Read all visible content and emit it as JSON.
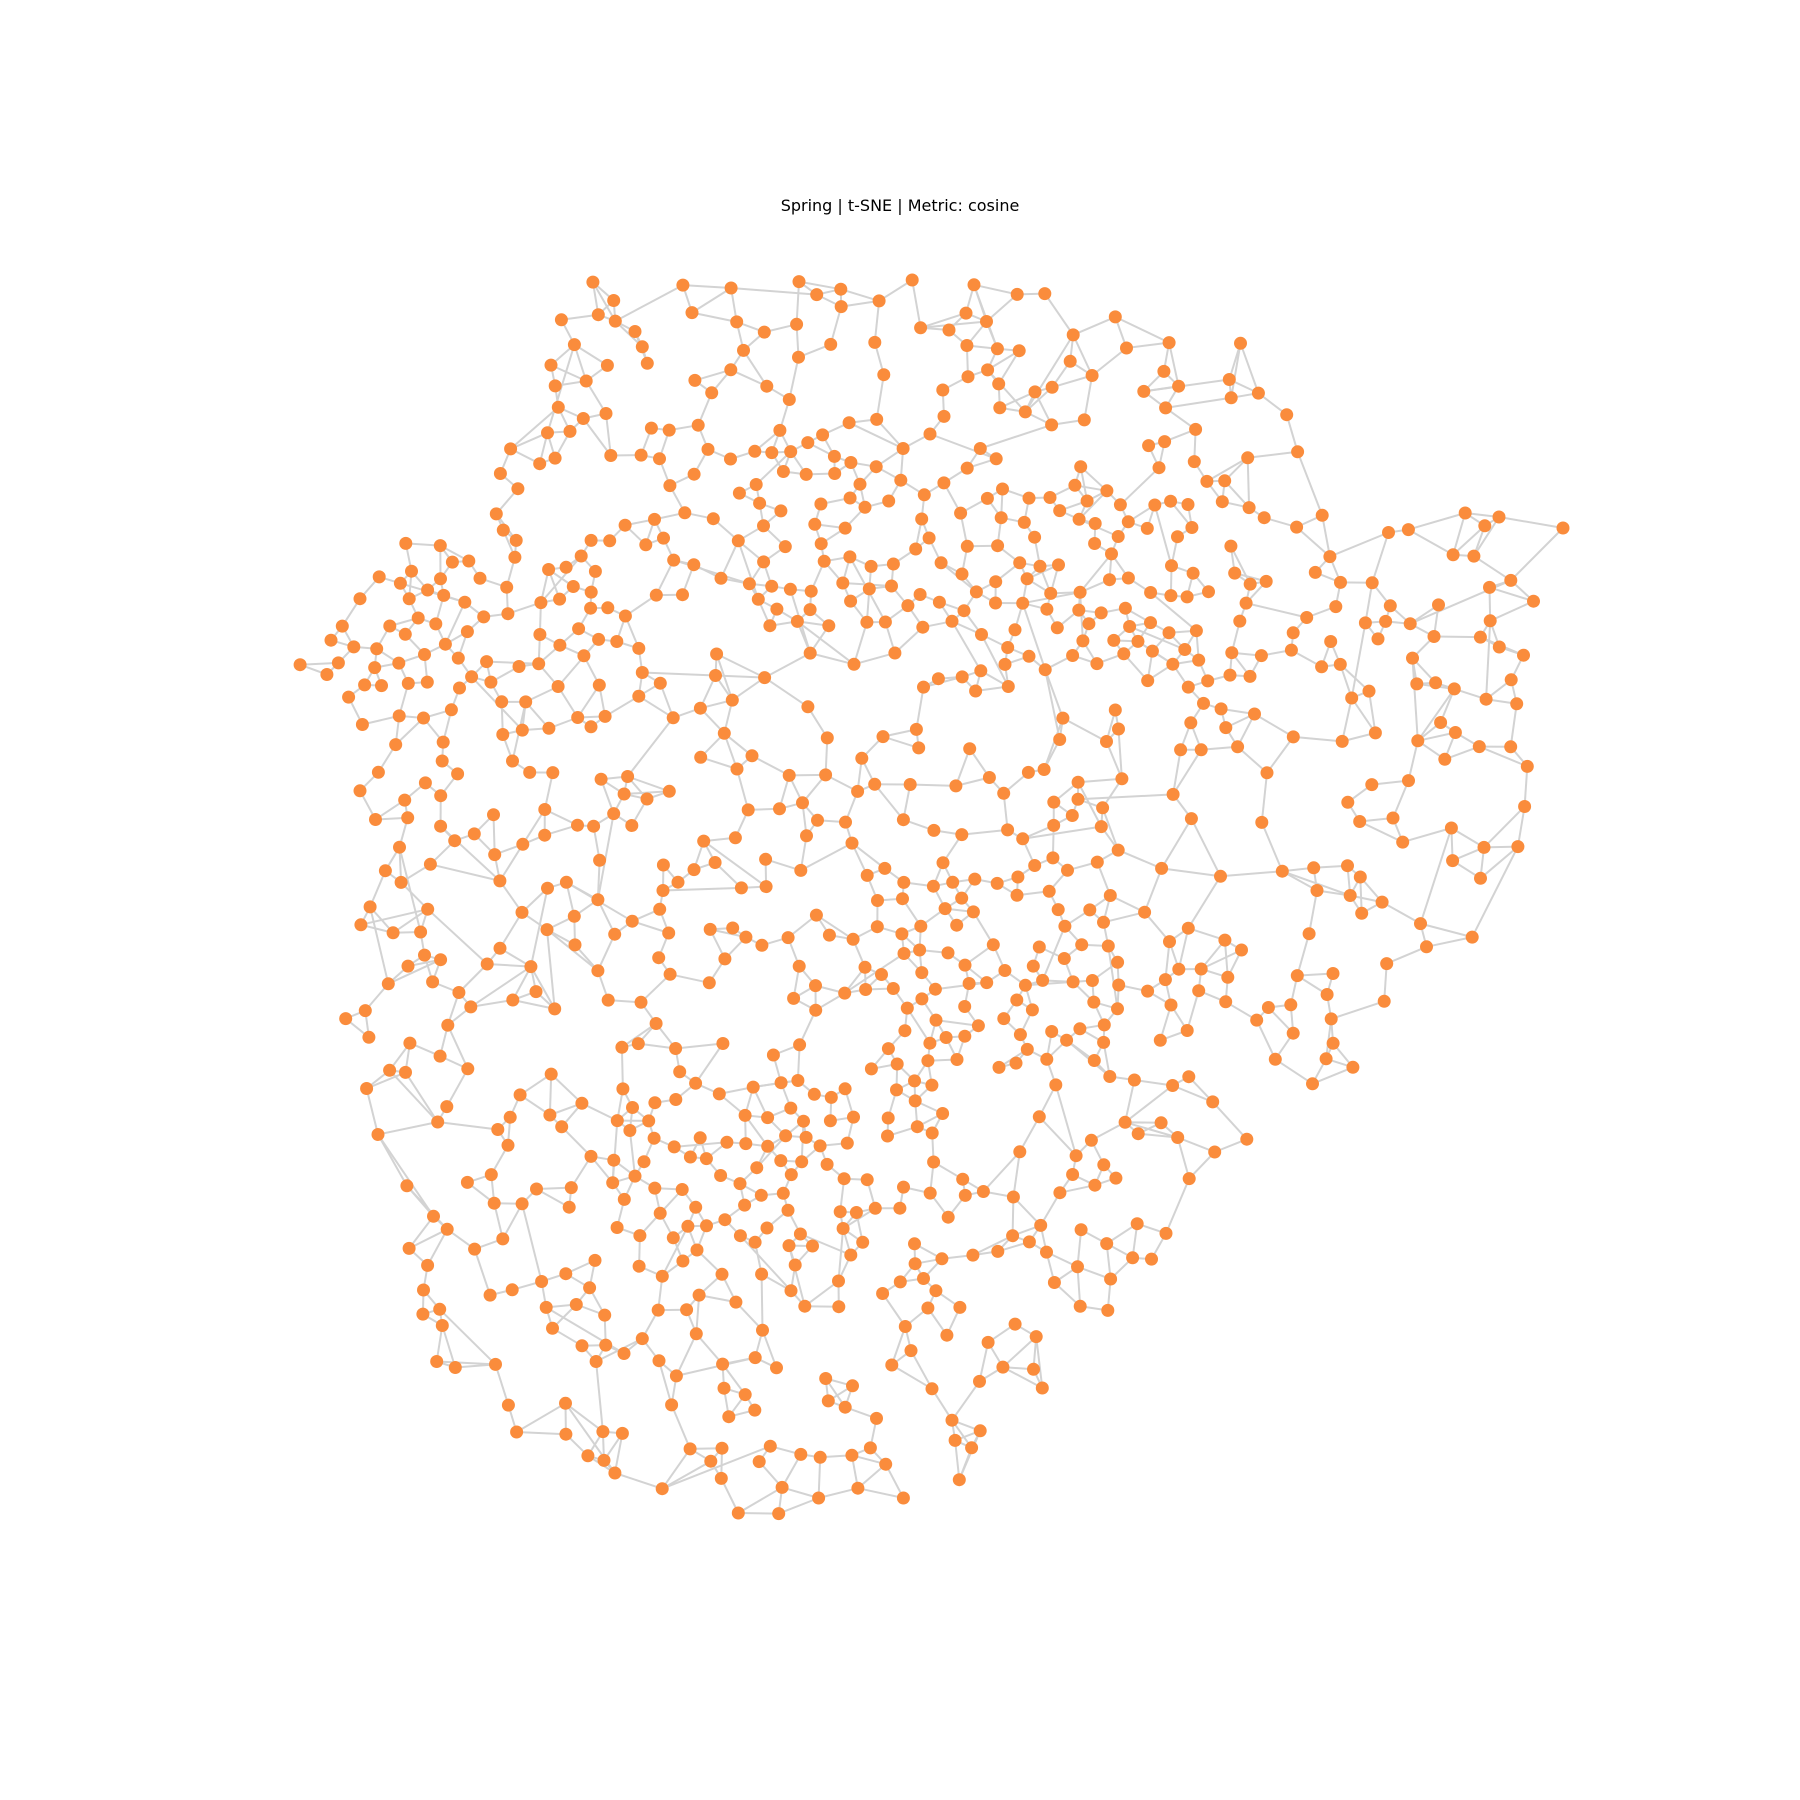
{
  "title": "Spring | t-SNE | Metric: cosine",
  "colors": {
    "node": "#fa8c3c",
    "edge": "#d3d3d3",
    "background": "#ffffff"
  },
  "graph": {
    "layout": "spring",
    "node_count": 1000,
    "hull": [
      [
        0.23,
        0.0
      ],
      [
        0.55,
        0.0
      ],
      [
        0.75,
        0.05
      ],
      [
        0.8,
        0.15
      ],
      [
        1.0,
        0.2
      ],
      [
        0.95,
        0.52
      ],
      [
        0.7,
        0.75
      ],
      [
        0.52,
        0.97
      ],
      [
        0.35,
        1.0
      ],
      [
        0.12,
        0.9
      ],
      [
        0.04,
        0.6
      ],
      [
        0.06,
        0.45
      ],
      [
        0.0,
        0.3
      ],
      [
        0.15,
        0.15
      ]
    ],
    "dense_regions": [
      [
        0.35,
        0.72
      ],
      [
        0.55,
        0.55
      ],
      [
        0.15,
        0.28
      ],
      [
        0.65,
        0.25
      ],
      [
        0.45,
        0.2
      ]
    ]
  }
}
